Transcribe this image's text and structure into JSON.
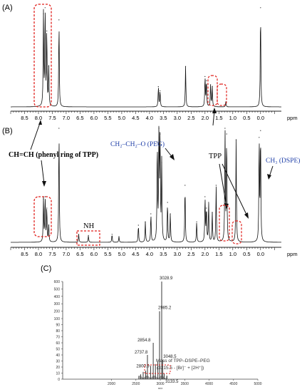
{
  "panels": {
    "a_label": "(A)",
    "b_label": "(B)",
    "c_label": "(C)"
  },
  "colors": {
    "spectrum": "#111111",
    "highlight": "#e0201c",
    "blue_label": "#1f3fa8"
  },
  "annotations": {
    "ch_phenyl": "CH=CH (phenyl ring of TPP)",
    "peg": "CH₂–CH₂–O (PEG)",
    "tpp": "TPP",
    "dspe": "CH₃ (DSPE)",
    "nh": "NH",
    "mass_line1": "Mass of TPP–DSPE–PEG",
    "mass_line2": "(3215.5 - [Br]⁻ + [2H⁺])"
  },
  "chart_data": [
    {
      "type": "line",
      "panel": "A",
      "xlabel": "ppm",
      "xlim": [
        9.0,
        -0.75
      ],
      "x_ticks": [
        8.5,
        8.0,
        7.5,
        7.0,
        6.5,
        6.0,
        5.5,
        5.0,
        4.5,
        4.0,
        3.5,
        3.0,
        2.5,
        2.0,
        1.5,
        1.0,
        0.5,
        0.0
      ],
      "peaks": [
        {
          "x": 7.82,
          "h": 0.92
        },
        {
          "x": 7.76,
          "h": 0.98
        },
        {
          "x": 7.7,
          "h": 0.75
        },
        {
          "x": 7.63,
          "h": 0.4
        },
        {
          "x": 7.26,
          "h": 0.86
        },
        {
          "x": 3.68,
          "h": 0.2
        },
        {
          "x": 3.62,
          "h": 0.16
        },
        {
          "x": 2.7,
          "h": 0.4
        },
        {
          "x": 2.0,
          "h": 0.3
        },
        {
          "x": 1.95,
          "h": 0.26
        },
        {
          "x": 1.8,
          "h": 0.22
        },
        {
          "x": 1.74,
          "h": 0.2
        },
        {
          "x": 1.25,
          "h": 0.05
        },
        {
          "x": 0.0,
          "h": 0.98
        }
      ]
    },
    {
      "type": "line",
      "panel": "B",
      "xlabel": "ppm",
      "xlim": [
        9.0,
        -0.75
      ],
      "x_ticks": [
        8.5,
        8.0,
        7.5,
        7.0,
        6.5,
        6.0,
        5.5,
        5.0,
        4.5,
        4.0,
        3.5,
        3.0,
        2.5,
        2.0,
        1.5,
        1.0,
        0.5,
        0.0
      ],
      "peaks": [
        {
          "x": 7.82,
          "h": 0.38
        },
        {
          "x": 7.76,
          "h": 0.4
        },
        {
          "x": 7.7,
          "h": 0.3
        },
        {
          "x": 7.63,
          "h": 0.15
        },
        {
          "x": 7.26,
          "h": 1.0
        },
        {
          "x": 6.55,
          "h": 0.07
        },
        {
          "x": 6.2,
          "h": 0.06
        },
        {
          "x": 5.35,
          "h": 0.07
        },
        {
          "x": 5.1,
          "h": 0.05
        },
        {
          "x": 4.4,
          "h": 0.15
        },
        {
          "x": 4.15,
          "h": 0.18
        },
        {
          "x": 3.95,
          "h": 0.25
        },
        {
          "x": 3.72,
          "h": 0.88
        },
        {
          "x": 3.66,
          "h": 1.0
        },
        {
          "x": 3.62,
          "h": 0.95
        },
        {
          "x": 3.56,
          "h": 0.7
        },
        {
          "x": 3.35,
          "h": 0.35
        },
        {
          "x": 3.25,
          "h": 0.25
        },
        {
          "x": 2.72,
          "h": 0.5
        },
        {
          "x": 2.3,
          "h": 0.18
        },
        {
          "x": 2.0,
          "h": 0.4
        },
        {
          "x": 1.95,
          "h": 0.3
        },
        {
          "x": 1.87,
          "h": 0.35
        },
        {
          "x": 1.74,
          "h": 0.26
        },
        {
          "x": 1.6,
          "h": 0.5
        },
        {
          "x": 1.28,
          "h": 1.0
        },
        {
          "x": 1.22,
          "h": 0.95
        },
        {
          "x": 0.88,
          "h": 0.9
        },
        {
          "x": 0.05,
          "h": 0.92
        },
        {
          "x": 0.0,
          "h": 0.98
        }
      ]
    },
    {
      "type": "bar",
      "panel": "C",
      "xlabel": "m/z",
      "xlim": [
        1000,
        5000
      ],
      "ylim": [
        0,
        600
      ],
      "x_ticks": [
        2000,
        2500,
        3000,
        3500,
        4000,
        4500,
        5000
      ],
      "y_ticks": [
        0,
        10,
        20,
        30,
        40,
        50,
        60,
        70,
        80,
        90,
        100,
        200,
        300,
        400,
        500,
        600
      ],
      "peaks": [
        {
          "x": 2600,
          "y": 8
        },
        {
          "x": 2650,
          "y": 12
        },
        {
          "x": 2700,
          "y": 14
        },
        {
          "x": 2737.8,
          "y": 40,
          "label": "2737.8"
        },
        {
          "x": 2800.9,
          "y": 22,
          "label": "2800.9"
        },
        {
          "x": 2854.8,
          "y": 60,
          "label": "2854.8"
        },
        {
          "x": 2900,
          "y": 25
        },
        {
          "x": 2950,
          "y": 30
        },
        {
          "x": 2985.2,
          "y": 200,
          "label": "2985.2"
        },
        {
          "x": 3028.9,
          "y": 600,
          "label": "3028.9"
        },
        {
          "x": 3048.5,
          "y": 32,
          "label": "3048.5"
        },
        {
          "x": 3080,
          "y": 10
        },
        {
          "x": 3133.5,
          "y": 6,
          "label": "3133.5"
        }
      ]
    }
  ]
}
